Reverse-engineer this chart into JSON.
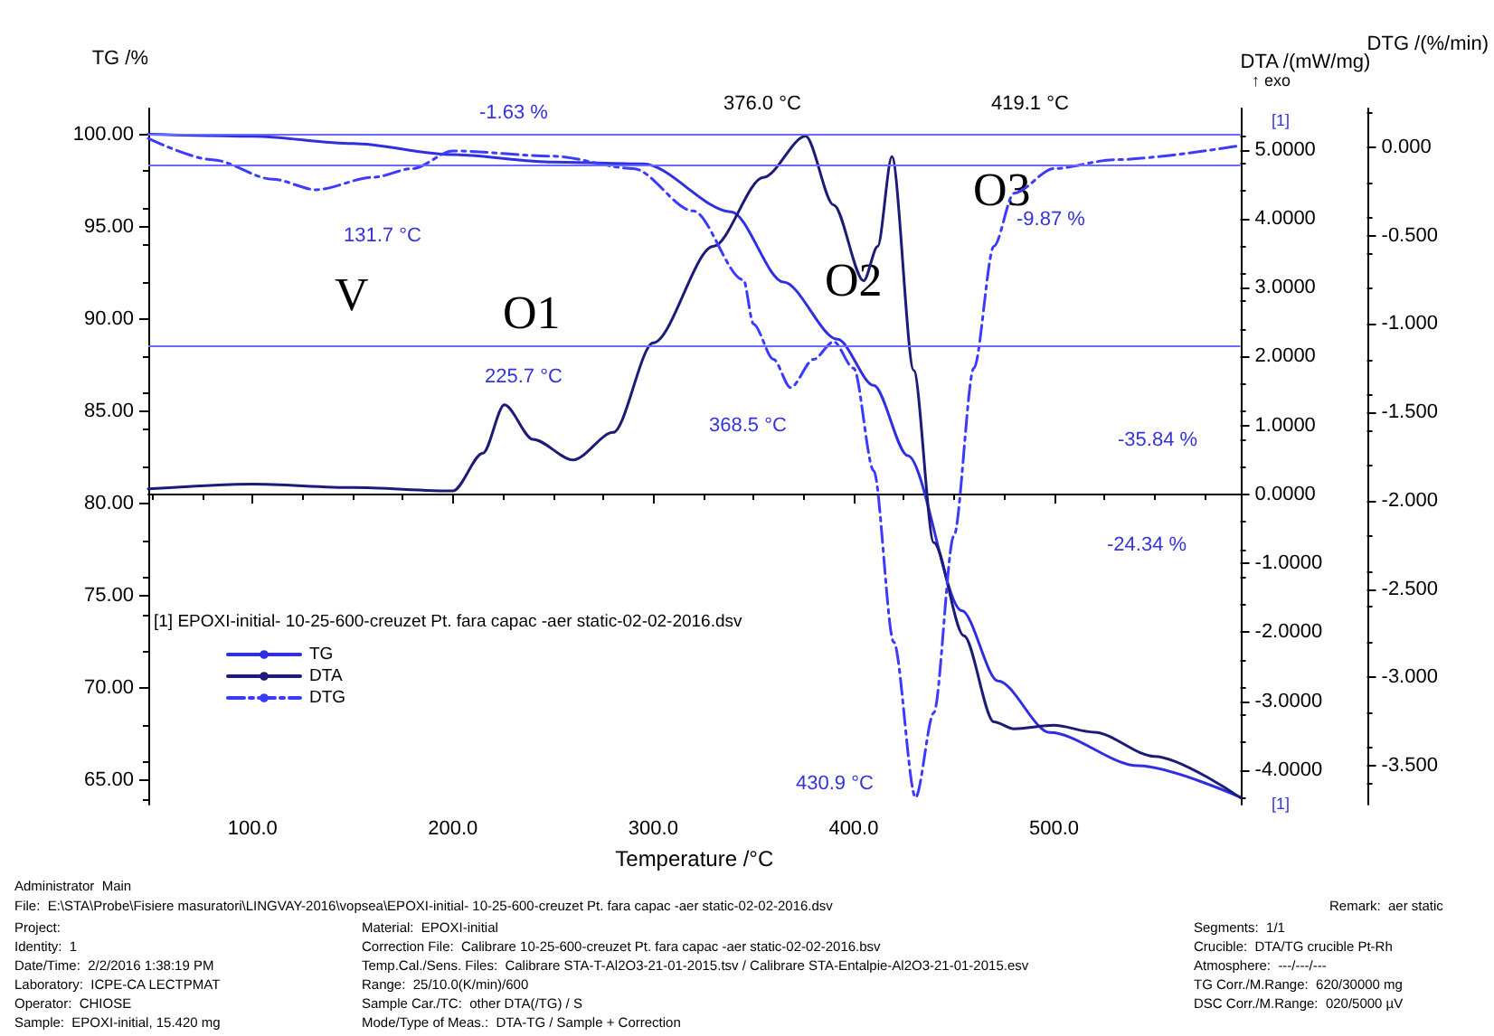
{
  "chart_data": {
    "type": "line",
    "xlabel": "Temperature /°C",
    "ylabel": "TG /%",
    "y2label": "DTA /(mW/mg)",
    "y3label": "DTG /(%/min)",
    "legend_title": "[1] EPOXI-initial- 10-25-600-creuzet Pt. fara capac -aer static-02-02-2016.dsv",
    "legend": "bottom left",
    "marker": "none",
    "grid": false,
    "xlim": [
      48,
      593
    ],
    "xticks": [
      {
        "value": 100,
        "label": "100.0"
      },
      {
        "value": 200,
        "label": "200.0"
      },
      {
        "value": 300,
        "label": "300.0"
      },
      {
        "value": 400,
        "label": "400.0"
      },
      {
        "value": 500,
        "label": "500.0"
      }
    ],
    "ylim": [
      63.7,
      101.4
    ],
    "yticks": [
      {
        "value": 65,
        "label": "65.00"
      },
      {
        "value": 70,
        "label": "70.00"
      },
      {
        "value": 75,
        "label": "75.00"
      },
      {
        "value": 80,
        "label": "80.00"
      },
      {
        "value": 85,
        "label": "85.00"
      },
      {
        "value": 90,
        "label": "90.00"
      },
      {
        "value": 95,
        "label": "95.00"
      },
      {
        "value": 100,
        "label": "100.00"
      }
    ],
    "y2lim": [
      -4.5,
      5.6
    ],
    "y2ticks": [
      {
        "value": -4,
        "label": "-4.0000"
      },
      {
        "value": -3,
        "label": "-3.0000"
      },
      {
        "value": -2,
        "label": "-2.0000"
      },
      {
        "value": -1,
        "label": "-1.0000"
      },
      {
        "value": 0,
        "label": "0.0000"
      },
      {
        "value": 1,
        "label": "1.0000"
      },
      {
        "value": 2,
        "label": "2.0000"
      },
      {
        "value": 3,
        "label": "3.0000"
      },
      {
        "value": 4,
        "label": "4.0000"
      },
      {
        "value": 5,
        "label": "5.0000"
      }
    ],
    "y3lim": [
      -3.72,
      0.22
    ],
    "y3ticks": [
      {
        "value": -3.5,
        "label": "-3.500"
      },
      {
        "value": -3,
        "label": "-3.000"
      },
      {
        "value": -2.5,
        "label": "-2.500"
      },
      {
        "value": -2,
        "label": "-2.000"
      },
      {
        "value": -1.5,
        "label": "-1.500"
      },
      {
        "value": -1,
        "label": "-1.000"
      },
      {
        "value": -0.5,
        "label": "-0.500"
      },
      {
        "value": 0,
        "label": "0.000"
      }
    ],
    "series": [
      {
        "name": "TG",
        "color": "#2f2fe0",
        "line_style": "solid",
        "x": [
          48,
          100,
          150,
          200,
          250,
          295,
          339,
          365,
          392,
          410,
          427,
          454,
          472,
          498,
          542,
          593
        ],
        "values": [
          100,
          99.9,
          99.5,
          98.9,
          98.5,
          98.4,
          95.8,
          92,
          88.9,
          86.4,
          82.6,
          74.2,
          70.4,
          67.6,
          65.8,
          64.1
        ]
      },
      {
        "name": "DTA",
        "color": "#1c1c78",
        "line_style": "solid",
        "axis": "y2",
        "x": [
          48,
          100,
          150,
          200,
          215,
          225.7,
          240,
          260,
          280,
          300,
          330,
          355,
          376,
          390,
          405,
          412,
          419.1,
          430,
          440,
          455,
          470,
          480,
          500,
          520,
          550,
          593
        ],
        "values": [
          0.08,
          0.15,
          0.1,
          0.05,
          0.6,
          1.3,
          0.8,
          0.5,
          0.9,
          2.2,
          3.6,
          4.6,
          5.2,
          4.2,
          3.1,
          3.6,
          4.9,
          1.8,
          -0.7,
          -2.05,
          -3.3,
          -3.4,
          -3.35,
          -3.45,
          -3.8,
          -4.4
        ]
      },
      {
        "name": "DTG",
        "color": "#3b3bff",
        "line_style": "dashed",
        "axis": "y3",
        "x": [
          48,
          80,
          110,
          131.7,
          160,
          180,
          200,
          250,
          290,
          320,
          345,
          350,
          360,
          368.5,
          380,
          390,
          400,
          410,
          420,
          430.9,
          440,
          450,
          460,
          470,
          480,
          500,
          530,
          593
        ],
        "values": [
          0.05,
          -0.07,
          -0.18,
          -0.24,
          -0.17,
          -0.12,
          -0.02,
          -0.05,
          -0.12,
          -0.36,
          -0.75,
          -1.0,
          -1.2,
          -1.36,
          -1.2,
          -1.1,
          -1.25,
          -1.83,
          -2.8,
          -3.68,
          -3.2,
          -2.2,
          -1.25,
          -0.56,
          -0.26,
          -0.12,
          -0.07,
          0.01
        ]
      }
    ],
    "ref_lines": [
      {
        "axis": "y",
        "value": 100,
        "color": "#6a6aff"
      },
      {
        "axis": "y",
        "value": 98.37,
        "color": "#6a6aff"
      },
      {
        "axis": "y",
        "value": 88.5,
        "color": "#6a6aff"
      }
    ],
    "annotations": [
      "-1.63 %",
      "131.7 °C",
      "V",
      "O1",
      "225.7 °C",
      "376.0 °C",
      "419.1 °C",
      "O3",
      "O2",
      "-9.87 %",
      "368.5 °C",
      "-35.84 %",
      "-24.34 %",
      "430.9 °C",
      "[1]",
      "[1]",
      "↑ exo",
      "Administrator  Main",
      "File:  E:\\STA\\Probe\\Fisiere masuratori\\LINGVAY-2016\\vopsea\\EPOXI-initial- 10-25-600-creuzet Pt. fara capac -aer static-02-02-2016.dsv",
      "Remark:  aer static",
      "Project:",
      "Identity:  1",
      "Date/Time:  2/2/2016 1:38:19 PM",
      "Laboratory:  ICPE-CA LECTPMAT",
      "Operator:  CHIOSE",
      "Sample:  EPOXI-initial, 15.420 mg",
      "Material:  EPOXI-initial",
      "Correction File:  Calibrare 10-25-600-creuzet Pt. fara capac -aer static-02-02-2016.bsv",
      "Temp.Cal./Sens. Files:  Calibrare STA-T-Al2O3-21-01-2015.tsv / Calibrare STA-Entalpie-Al2O3-21-01-2015.esv",
      "Range:  25/10.0(K/min)/600",
      "Sample Car./TC:  other DTA(/TG) / S",
      "Mode/Type of Meas.:  DTA-TG / Sample + Correction",
      "Segments:  1/1",
      "Crucible:  DTA/TG crucible Pt-Rh",
      "Atmosphere:  ---/---/---",
      "TG Corr./M.Range:  620/30000 mg",
      "DSC Corr./M.Range:  020/5000 µV"
    ]
  }
}
